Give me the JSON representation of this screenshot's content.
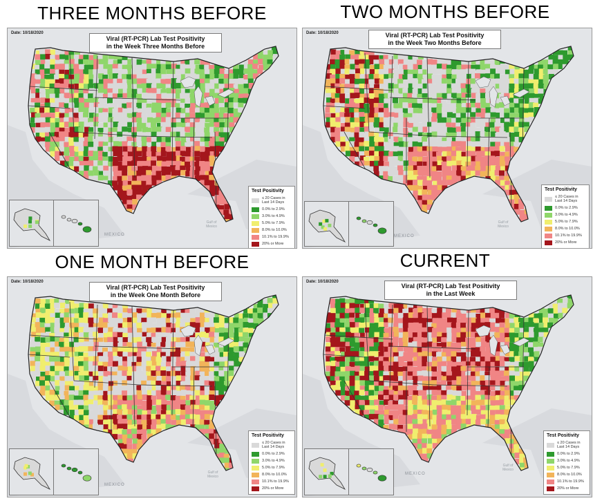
{
  "headings": {
    "three": "THREE MONTHS BEFORE",
    "two": "TWO MONTHS BEFORE",
    "one": "ONE MONTH BEFORE",
    "current": "CURRENT"
  },
  "panels": [
    {
      "date": "Date: 10/18/2020",
      "title_line1": "Viral (RT-PCR) Lab Test Positivity",
      "title_line2": "in the Week Three Months Before"
    },
    {
      "date": "Date: 10/18/2020",
      "title_line1": "Viral (RT-PCR) Lab Test Positivity",
      "title_line2": "in the Week Two Months Before"
    },
    {
      "date": "Date: 10/18/2020",
      "title_line1": "Viral (RT-PCR) Lab Test Positivity",
      "title_line2": "in the Week One Month Before"
    },
    {
      "date": "Date: 10/18/2020",
      "title_line1": "Viral (RT-PCR) Lab Test Positivity",
      "title_line2": "in the Last Week"
    }
  ],
  "legend": {
    "title": "Test Positivity",
    "items": [
      {
        "label": "≤ 20 Cases in Last 14 Days",
        "color": "#d9d9d9"
      },
      {
        "label": "0.0% to 2.9%",
        "color": "#2e9a2e"
      },
      {
        "label": "3.0% to 4.9%",
        "color": "#8fd66a"
      },
      {
        "label": "5.0% to 7.9%",
        "color": "#f0ee6e"
      },
      {
        "label": "8.0% to 10.0%",
        "color": "#f2b45a"
      },
      {
        "label": "10.1% to 19.9%",
        "color": "#f08585"
      },
      {
        "label": "20% or More",
        "color": "#a4161c"
      }
    ]
  },
  "map_labels": {
    "mexico": "MEXICO",
    "gulf": "Gulf of Mexico"
  }
}
